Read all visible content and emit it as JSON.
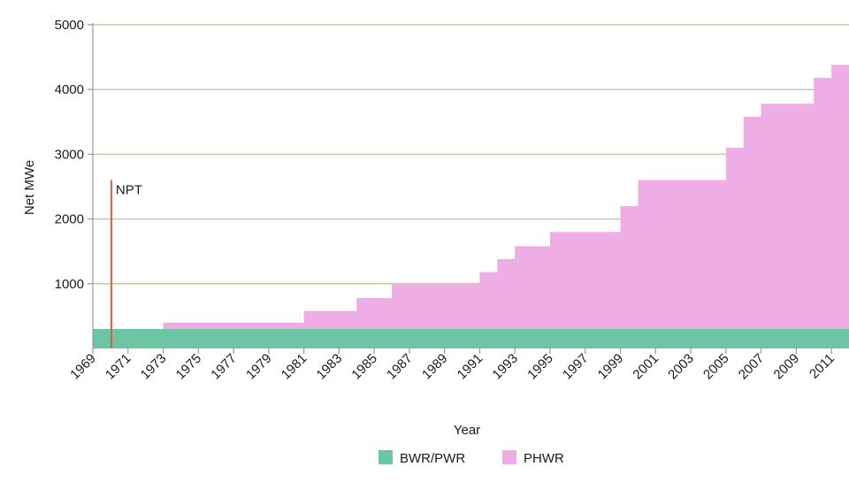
{
  "chart_data": {
    "type": "area",
    "step": true,
    "stacked": true,
    "xlabel": "Year",
    "ylabel": "Net MWe",
    "ylim": [
      0,
      5000
    ],
    "yticks": [
      1000,
      2000,
      3000,
      4000,
      5000
    ],
    "xlim": [
      1969,
      2012
    ],
    "xticks": [
      1969,
      1971,
      1973,
      1975,
      1977,
      1979,
      1981,
      1983,
      1985,
      1987,
      1989,
      1991,
      1993,
      1995,
      1997,
      1999,
      2001,
      2003,
      2005,
      2007,
      2009,
      2011
    ],
    "grid": "horizontal",
    "legend_position": "bottom",
    "x": [
      1969,
      1970,
      1971,
      1972,
      1973,
      1974,
      1975,
      1976,
      1977,
      1978,
      1979,
      1980,
      1981,
      1982,
      1983,
      1984,
      1985,
      1986,
      1987,
      1988,
      1989,
      1990,
      1991,
      1992,
      1993,
      1994,
      1995,
      1996,
      1997,
      1998,
      1999,
      2000,
      2001,
      2002,
      2003,
      2004,
      2005,
      2006,
      2007,
      2008,
      2009,
      2010,
      2011
    ],
    "series": [
      {
        "name": "BWR/PWR",
        "color": "#6cc6a3",
        "values": [
          300,
          300,
          300,
          300,
          300,
          300,
          300,
          300,
          300,
          300,
          300,
          300,
          300,
          300,
          300,
          300,
          300,
          300,
          300,
          300,
          300,
          300,
          300,
          300,
          300,
          300,
          300,
          300,
          300,
          300,
          300,
          300,
          300,
          300,
          300,
          300,
          300,
          300,
          300,
          300,
          300,
          300,
          300
        ]
      },
      {
        "name": "PHWR",
        "color": "#eeaee5",
        "values": [
          0,
          0,
          0,
          0,
          100,
          100,
          100,
          100,
          100,
          100,
          100,
          100,
          280,
          280,
          280,
          480,
          480,
          700,
          700,
          700,
          700,
          700,
          880,
          1080,
          1280,
          1280,
          1500,
          1500,
          1500,
          1500,
          1900,
          2300,
          2300,
          2300,
          2300,
          2300,
          2800,
          3280,
          3480,
          3480,
          3480,
          3880,
          4080
        ]
      }
    ],
    "annotations": [
      {
        "label": "NPT",
        "x": 1970,
        "y_top": 2600,
        "color": "#e05a4a"
      }
    ]
  }
}
